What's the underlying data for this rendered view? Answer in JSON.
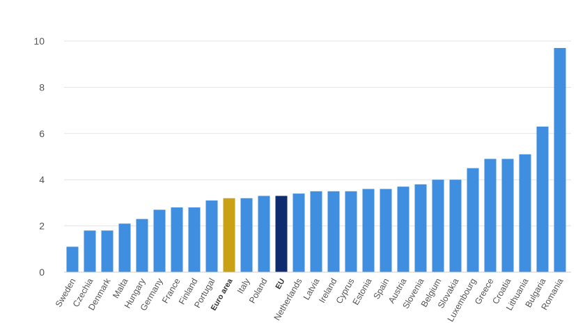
{
  "chart_data": {
    "type": "bar",
    "categories": [
      "Sweden",
      "Czechia",
      "Denmark",
      "Malta",
      "Hungary",
      "Germany",
      "France",
      "Finland",
      "Portugal",
      "Euro area",
      "Italy",
      "Poland",
      "EU",
      "Netherlands",
      "Latvia",
      "Ireland",
      "Cyprus",
      "Estonia",
      "Spain",
      "Austria",
      "Slovenia",
      "Belgium",
      "Slovakia",
      "Luxembourg",
      "Greece",
      "Croatia",
      "Lithuania",
      "Bulgaria",
      "Romania"
    ],
    "values": [
      1.1,
      1.8,
      1.8,
      2.1,
      2.3,
      2.7,
      2.8,
      2.8,
      3.1,
      3.2,
      3.2,
      3.3,
      3.3,
      3.4,
      3.5,
      3.5,
      3.5,
      3.6,
      3.6,
      3.7,
      3.8,
      4.0,
      4.0,
      4.5,
      4.9,
      4.9,
      5.1,
      6.3,
      9.7
    ],
    "highlight": {
      "Euro area": "#c9a114",
      "EU": "#0f2c6e"
    },
    "bold_categories": [
      "Euro area",
      "EU"
    ],
    "default_color": "#3f8ee0",
    "ylim": [
      0,
      10
    ],
    "yticks": [
      0,
      2,
      4,
      6,
      8,
      10
    ],
    "grid": true,
    "title": "",
    "xlabel": "",
    "ylabel": ""
  }
}
